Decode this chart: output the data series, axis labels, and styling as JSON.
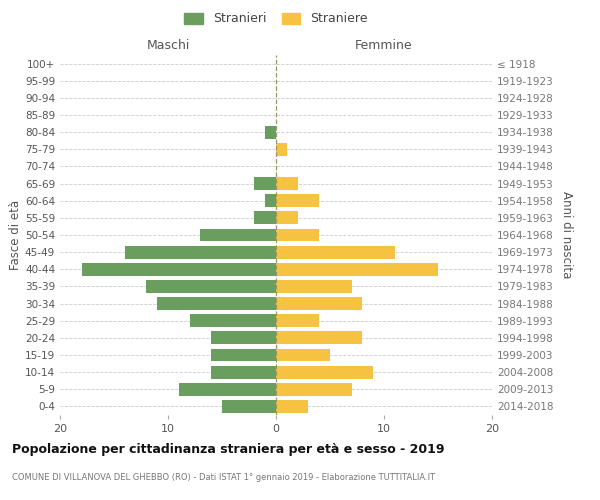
{
  "age_groups": [
    "0-4",
    "5-9",
    "10-14",
    "15-19",
    "20-24",
    "25-29",
    "30-34",
    "35-39",
    "40-44",
    "45-49",
    "50-54",
    "55-59",
    "60-64",
    "65-69",
    "70-74",
    "75-79",
    "80-84",
    "85-89",
    "90-94",
    "95-99",
    "100+"
  ],
  "birth_years": [
    "2014-2018",
    "2009-2013",
    "2004-2008",
    "1999-2003",
    "1994-1998",
    "1989-1993",
    "1984-1988",
    "1979-1983",
    "1974-1978",
    "1969-1973",
    "1964-1968",
    "1959-1963",
    "1954-1958",
    "1949-1953",
    "1944-1948",
    "1939-1943",
    "1934-1938",
    "1929-1933",
    "1924-1928",
    "1919-1923",
    "≤ 1918"
  ],
  "maschi": [
    5,
    9,
    6,
    6,
    6,
    8,
    11,
    12,
    18,
    14,
    7,
    2,
    1,
    2,
    0,
    0,
    1,
    0,
    0,
    0,
    0
  ],
  "femmine": [
    3,
    7,
    9,
    5,
    8,
    4,
    8,
    7,
    15,
    11,
    4,
    2,
    4,
    2,
    0,
    1,
    0,
    0,
    0,
    0,
    0
  ],
  "color_maschi": "#6a9e5e",
  "color_femmine": "#f5c242",
  "title": "Popolazione per cittadinanza straniera per età e sesso - 2019",
  "subtitle": "COMUNE DI VILLANOVA DEL GHEBBO (RO) - Dati ISTAT 1° gennaio 2019 - Elaborazione TUTTITALIA.IT",
  "xlabel_left": "Maschi",
  "xlabel_right": "Femmine",
  "ylabel_left": "Fasce di età",
  "ylabel_right": "Anni di nascita",
  "legend_maschi": "Stranieri",
  "legend_femmine": "Straniere",
  "xlim": 20,
  "background_color": "#ffffff",
  "grid_color": "#cccccc"
}
